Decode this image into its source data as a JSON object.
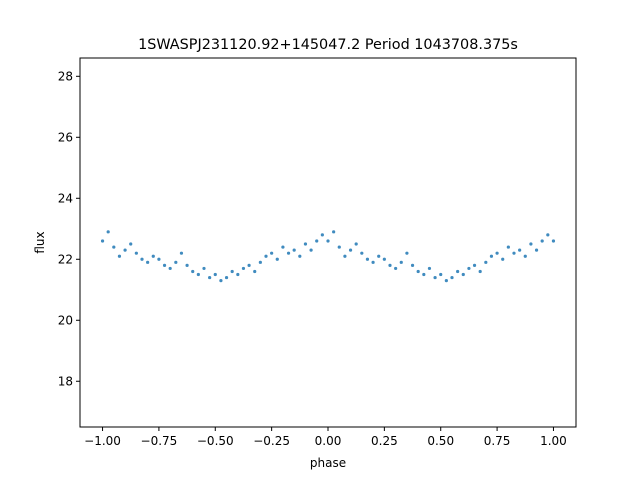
{
  "chart_data": {
    "type": "scatter",
    "title": "1SWASPJ231120.92+145047.2 Period 1043708.375s",
    "xlabel": "phase",
    "ylabel": "flux",
    "xlim": [
      -1.1,
      1.1
    ],
    "ylim": [
      16.5,
      28.6
    ],
    "xticks": [
      -1.0,
      -0.75,
      -0.5,
      -0.25,
      0.0,
      0.25,
      0.5,
      0.75,
      1.0
    ],
    "xtick_labels": [
      "−1.00",
      "−0.75",
      "−0.50",
      "−0.25",
      "0.00",
      "0.25",
      "0.50",
      "0.75",
      "1.00"
    ],
    "yticks": [
      18,
      20,
      22,
      24,
      26,
      28
    ],
    "ytick_labels": [
      "18",
      "20",
      "22",
      "24",
      "26",
      "28"
    ],
    "grid": false,
    "marker_color": "#1f77b4",
    "series": [
      {
        "x": [
          -1.0,
          -0.975,
          -0.95,
          -0.925,
          -0.9,
          -0.875,
          -0.85,
          -0.825,
          -0.8,
          -0.775,
          -0.75,
          -0.725,
          -0.7,
          -0.675,
          -0.65,
          -0.625,
          -0.6,
          -0.575,
          -0.55,
          -0.525,
          -0.5,
          -0.475,
          -0.45,
          -0.425,
          -0.4,
          -0.375,
          -0.35,
          -0.325,
          -0.3,
          -0.275,
          -0.25,
          -0.225,
          -0.2,
          -0.175,
          -0.15,
          -0.125,
          -0.1,
          -0.075,
          -0.05,
          -0.025,
          0.0,
          0.025,
          0.05,
          0.075,
          0.1,
          0.125,
          0.15,
          0.175,
          0.2,
          0.225,
          0.25,
          0.275,
          0.3,
          0.325,
          0.35,
          0.375,
          0.4,
          0.425,
          0.45,
          0.475,
          0.5,
          0.525,
          0.55,
          0.575,
          0.6,
          0.625,
          0.65,
          0.675,
          0.7,
          0.725,
          0.75,
          0.775,
          0.8,
          0.825,
          0.85,
          0.875,
          0.9,
          0.925,
          0.95,
          0.975,
          1.0
        ],
        "y": [
          22.6,
          22.9,
          22.4,
          22.1,
          22.3,
          22.5,
          22.2,
          22.0,
          21.9,
          22.1,
          22.0,
          21.8,
          21.7,
          21.9,
          22.2,
          21.8,
          21.6,
          21.5,
          21.7,
          21.4,
          21.5,
          21.3,
          21.4,
          21.6,
          21.5,
          21.7,
          21.8,
          21.6,
          21.9,
          22.1,
          22.2,
          22.0,
          22.4,
          22.2,
          22.3,
          22.1,
          22.5,
          22.3,
          22.6,
          22.8,
          22.6,
          22.9,
          22.4,
          22.1,
          22.3,
          22.5,
          22.2,
          22.0,
          21.9,
          22.1,
          22.0,
          21.8,
          21.7,
          21.9,
          22.2,
          21.8,
          21.6,
          21.5,
          21.7,
          21.4,
          21.5,
          21.3,
          21.4,
          21.6,
          21.5,
          21.7,
          21.8,
          21.6,
          21.9,
          22.1,
          22.2,
          22.0,
          22.4,
          22.2,
          22.3,
          22.1,
          22.5,
          22.3,
          22.6,
          22.8,
          22.6
        ]
      }
    ]
  }
}
